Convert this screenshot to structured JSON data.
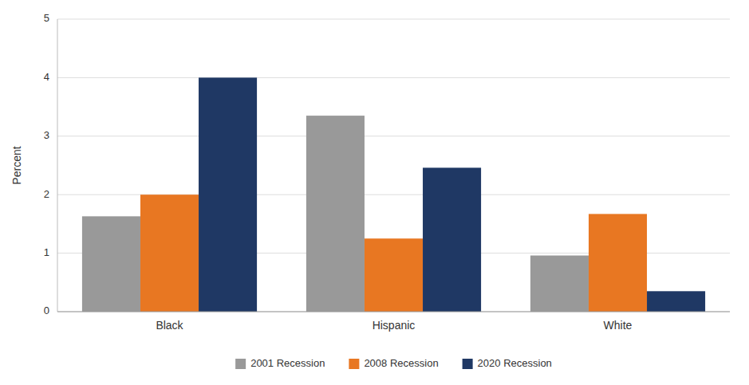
{
  "chart_data": {
    "type": "bar",
    "categories": [
      "Black",
      "Hispanic",
      "White"
    ],
    "series": [
      {
        "name": "2001 Recession",
        "color": "#999999",
        "values": [
          1.63,
          3.35,
          0.96
        ]
      },
      {
        "name": "2008 Recession",
        "color": "#E87722",
        "values": [
          2.0,
          1.25,
          1.67
        ]
      },
      {
        "name": "2020 Recession",
        "color": "#1F3864",
        "values": [
          4.0,
          2.46,
          0.35
        ]
      }
    ],
    "ylabel": "Percent",
    "ylim": [
      0,
      5
    ],
    "yticks": [
      0,
      1,
      2,
      3,
      4,
      5
    ],
    "grid": true,
    "legend": "bottom"
  }
}
